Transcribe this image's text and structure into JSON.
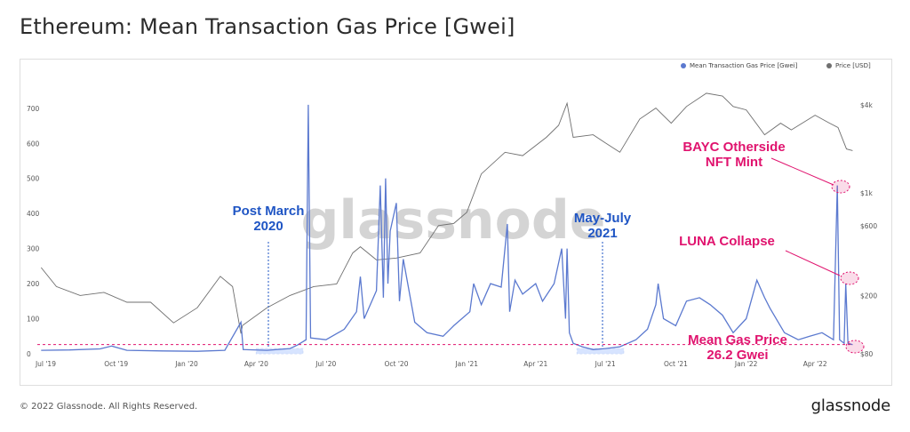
{
  "title": "Ethereum: Mean Transaction Gas Price [Gwei]",
  "footer": {
    "copyright": "© 2022 Glassnode. All Rights Reserved.",
    "brand": "glassnode"
  },
  "watermark": "glassnode",
  "colors": {
    "gas": "#5b79cf",
    "price": "#6f6f6f",
    "annotation_pink": "#e0136e",
    "annotation_blue": "#1f55c4"
  },
  "chart_data": {
    "type": "line",
    "legend": [
      {
        "name": "Mean Transaction Gas Price [Gwei]",
        "color": "#5b79cf"
      },
      {
        "name": "Price [USD]",
        "color": "#6f6f6f"
      }
    ],
    "y_left_ticks": [
      "0",
      "100",
      "200",
      "300",
      "400",
      "500",
      "600",
      "700"
    ],
    "y_right_ticks": [
      "$80",
      "$200",
      "$600",
      "$1k",
      "$4k"
    ],
    "x_ticks": [
      "Jul '19",
      "Oct '19",
      "Jan '20",
      "Apr '20",
      "Jul '20",
      "Oct '20",
      "Jan '21",
      "Apr '21",
      "Jul '21",
      "Oct '21",
      "Jan '22",
      "Apr '22"
    ],
    "ylim_left": [
      0,
      730
    ],
    "y_right_scale": "log",
    "ylim_right_usd": [
      80,
      5000
    ],
    "annotations": [
      {
        "text": "Post March\n2020",
        "date": "2020-05-01"
      },
      {
        "text": "May-July\n2021",
        "date": "2021-06-15"
      },
      {
        "text": "BAYC Otherside\nNFT Mint",
        "date": "2022-05-01",
        "value": 480
      },
      {
        "text": "LUNA Collapse",
        "date": "2022-05-11",
        "value": 210
      },
      {
        "text": "Mean Gas Price\n26.2 Gwei",
        "value": 26.2
      }
    ],
    "gas_series": {
      "name": "Mean Transaction Gas Price [Gwei]",
      "points": [
        [
          "2019-06-25",
          10
        ],
        [
          "2019-08-01",
          11
        ],
        [
          "2019-09-10",
          14
        ],
        [
          "2019-09-25",
          22
        ],
        [
          "2019-10-15",
          10
        ],
        [
          "2019-12-01",
          8
        ],
        [
          "2020-01-15",
          7
        ],
        [
          "2020-02-20",
          10
        ],
        [
          "2020-03-12",
          90
        ],
        [
          "2020-03-15",
          12
        ],
        [
          "2020-04-15",
          10
        ],
        [
          "2020-05-15",
          15
        ],
        [
          "2020-05-25",
          25
        ],
        [
          "2020-06-05",
          40
        ],
        [
          "2020-06-08",
          710
        ],
        [
          "2020-06-11",
          45
        ],
        [
          "2020-07-01",
          40
        ],
        [
          "2020-07-25",
          70
        ],
        [
          "2020-08-10",
          120
        ],
        [
          "2020-08-15",
          220
        ],
        [
          "2020-08-20",
          100
        ],
        [
          "2020-09-05",
          180
        ],
        [
          "2020-09-10",
          480
        ],
        [
          "2020-09-14",
          160
        ],
        [
          "2020-09-17",
          500
        ],
        [
          "2020-09-20",
          200
        ],
        [
          "2020-09-23",
          350
        ],
        [
          "2020-10-01",
          430
        ],
        [
          "2020-10-05",
          150
        ],
        [
          "2020-10-10",
          270
        ],
        [
          "2020-10-25",
          90
        ],
        [
          "2020-11-10",
          60
        ],
        [
          "2020-12-01",
          50
        ],
        [
          "2020-12-15",
          80
        ],
        [
          "2021-01-05",
          120
        ],
        [
          "2021-01-10",
          200
        ],
        [
          "2021-01-20",
          140
        ],
        [
          "2021-02-01",
          200
        ],
        [
          "2021-02-15",
          190
        ],
        [
          "2021-02-23",
          370
        ],
        [
          "2021-02-26",
          120
        ],
        [
          "2021-03-05",
          210
        ],
        [
          "2021-03-15",
          170
        ],
        [
          "2021-04-01",
          200
        ],
        [
          "2021-04-10",
          150
        ],
        [
          "2021-04-25",
          200
        ],
        [
          "2021-05-05",
          300
        ],
        [
          "2021-05-10",
          100
        ],
        [
          "2021-05-12",
          300
        ],
        [
          "2021-05-15",
          60
        ],
        [
          "2021-05-20",
          30
        ],
        [
          "2021-06-01",
          20
        ],
        [
          "2021-06-15",
          12
        ],
        [
          "2021-07-01",
          15
        ],
        [
          "2021-07-20",
          20
        ],
        [
          "2021-08-10",
          40
        ],
        [
          "2021-08-25",
          70
        ],
        [
          "2021-09-05",
          140
        ],
        [
          "2021-09-08",
          200
        ],
        [
          "2021-09-15",
          100
        ],
        [
          "2021-10-01",
          80
        ],
        [
          "2021-10-15",
          150
        ],
        [
          "2021-11-01",
          160
        ],
        [
          "2021-11-15",
          140
        ],
        [
          "2021-12-01",
          110
        ],
        [
          "2021-12-15",
          60
        ],
        [
          "2022-01-01",
          100
        ],
        [
          "2022-01-15",
          210
        ],
        [
          "2022-01-25",
          160
        ],
        [
          "2022-02-01",
          130
        ],
        [
          "2022-02-20",
          60
        ],
        [
          "2022-03-10",
          40
        ],
        [
          "2022-03-25",
          50
        ],
        [
          "2022-04-10",
          60
        ],
        [
          "2022-04-25",
          40
        ],
        [
          "2022-04-30",
          480
        ],
        [
          "2022-05-03",
          40
        ],
        [
          "2022-05-09",
          30
        ],
        [
          "2022-05-11",
          200
        ],
        [
          "2022-05-14",
          30
        ],
        [
          "2022-05-20",
          26.2
        ]
      ]
    },
    "price_series": {
      "name": "Price [USD]",
      "points": [
        [
          "2019-06-25",
          310
        ],
        [
          "2019-07-15",
          230
        ],
        [
          "2019-08-15",
          200
        ],
        [
          "2019-09-15",
          210
        ],
        [
          "2019-10-15",
          180
        ],
        [
          "2019-11-15",
          180
        ],
        [
          "2019-12-15",
          130
        ],
        [
          "2020-01-15",
          165
        ],
        [
          "2020-02-14",
          270
        ],
        [
          "2020-03-01",
          230
        ],
        [
          "2020-03-12",
          110
        ],
        [
          "2020-03-14",
          125
        ],
        [
          "2020-04-15",
          165
        ],
        [
          "2020-05-15",
          200
        ],
        [
          "2020-06-15",
          230
        ],
        [
          "2020-07-15",
          240
        ],
        [
          "2020-08-05",
          390
        ],
        [
          "2020-08-15",
          430
        ],
        [
          "2020-09-05",
          350
        ],
        [
          "2020-10-01",
          360
        ],
        [
          "2020-11-01",
          390
        ],
        [
          "2020-11-25",
          600
        ],
        [
          "2020-12-15",
          620
        ],
        [
          "2021-01-01",
          740
        ],
        [
          "2021-01-20",
          1350
        ],
        [
          "2021-02-20",
          1900
        ],
        [
          "2021-03-15",
          1800
        ],
        [
          "2021-04-15",
          2400
        ],
        [
          "2021-05-01",
          2900
        ],
        [
          "2021-05-12",
          4100
        ],
        [
          "2021-05-20",
          2400
        ],
        [
          "2021-06-15",
          2500
        ],
        [
          "2021-07-01",
          2200
        ],
        [
          "2021-07-20",
          1900
        ],
        [
          "2021-08-15",
          3200
        ],
        [
          "2021-09-05",
          3800
        ],
        [
          "2021-09-25",
          3000
        ],
        [
          "2021-10-15",
          3900
        ],
        [
          "2021-11-10",
          4800
        ],
        [
          "2021-12-01",
          4600
        ],
        [
          "2021-12-15",
          3900
        ],
        [
          "2022-01-01",
          3700
        ],
        [
          "2022-01-25",
          2500
        ],
        [
          "2022-02-15",
          3000
        ],
        [
          "2022-03-01",
          2700
        ],
        [
          "2022-04-01",
          3400
        ],
        [
          "2022-04-20",
          3000
        ],
        [
          "2022-05-01",
          2800
        ],
        [
          "2022-05-12",
          2000
        ],
        [
          "2022-05-20",
          1950
        ]
      ]
    }
  }
}
